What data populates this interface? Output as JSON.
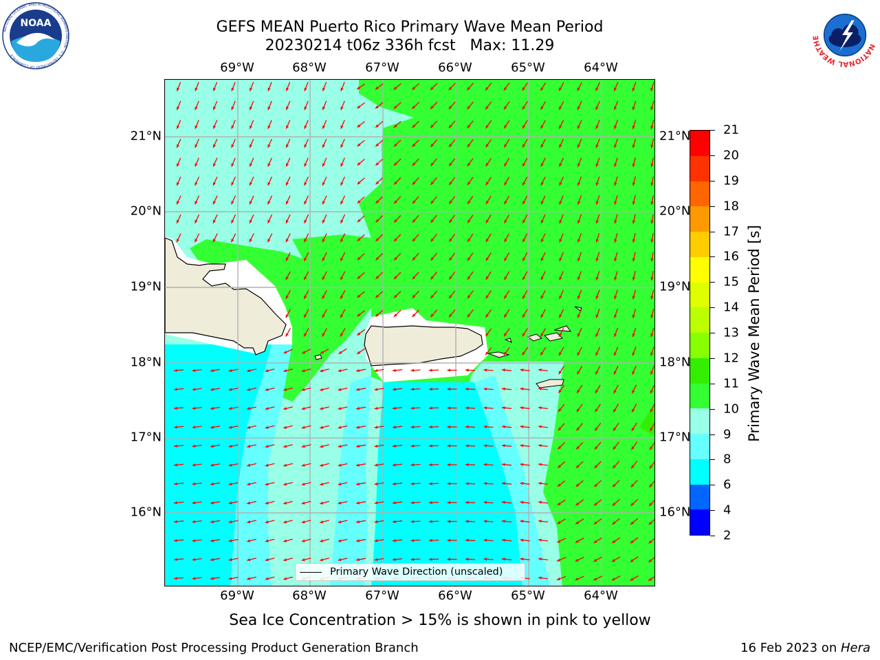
{
  "title": {
    "line1": "GEFS MEAN Puerto Rico Primary Wave Mean Period",
    "line2": "20230214 t06z 336h fcst   Max: 11.29"
  },
  "map": {
    "lon_ticks": [
      "69°W",
      "68°W",
      "67°W",
      "66°W",
      "65°W",
      "64°W"
    ],
    "lat_ticks": [
      "21°N",
      "20°N",
      "19°N",
      "18°N",
      "17°N",
      "16°N"
    ],
    "legend_label": "Primary Wave Direction (unscaled)",
    "arrow_color": "#ff0000",
    "land_color": "#efecd9",
    "grid_color": "#b0b0b0"
  },
  "colorbar": {
    "title": "Primary Wave Mean Period [s]",
    "ticks": [
      "2",
      "4",
      "6",
      "8",
      "9",
      "10",
      "11",
      "12",
      "13",
      "14",
      "15",
      "16",
      "17",
      "18",
      "19",
      "20",
      "21"
    ],
    "colors": [
      "#0000ff",
      "#0066ff",
      "#00ffff",
      "#66ffff",
      "#99ffe6",
      "#33ff33",
      "#33ee00",
      "#88ff00",
      "#bbff00",
      "#ddff00",
      "#ffff00",
      "#ffcc00",
      "#ff9900",
      "#ff6600",
      "#ff3300",
      "#ff0000"
    ]
  },
  "subcaption": "Sea Ice Concentration > 15% is shown in pink to yellow",
  "footer": {
    "left": "NCEP/EMC/Verification Post Processing Product Generation Branch",
    "right_prefix": "16 Feb 2023 on ",
    "right_host": "Hera"
  },
  "logos": {
    "noaa_text": "NOAA",
    "noaa_ring_text": "NATIONAL OCEANIC AND ATMOSPHERIC ADMINISTRATION · U.S. DEPARTMENT OF COMMERCE",
    "nws_ring_text": "NATIONAL WEATHER SERVICE"
  }
}
